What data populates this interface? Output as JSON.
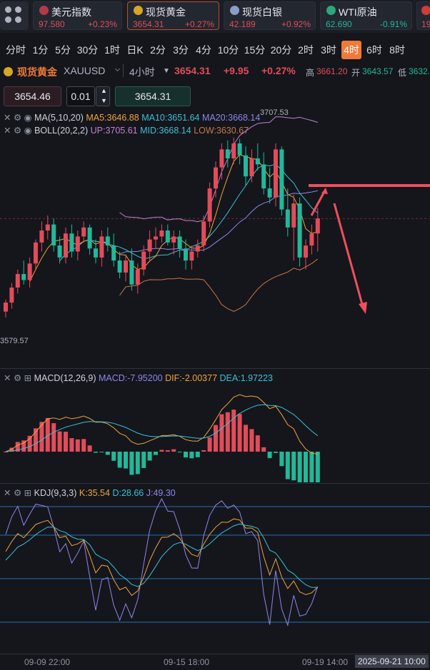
{
  "tickers": [
    {
      "name": "美元指数",
      "price": "97.580",
      "change": "+0.23%",
      "up": true,
      "flag_color": "#b23a48"
    },
    {
      "name": "现货黄金",
      "price": "3654.31",
      "change": "+0.27%",
      "up": true,
      "flag_color": "#d9a525",
      "active": true
    },
    {
      "name": "现货白银",
      "price": "42.189",
      "change": "+0.92%",
      "up": true,
      "flag_color": "#8a9cc9"
    },
    {
      "name": "WTI原油",
      "price": "62.690",
      "change": "-0.91%",
      "up": false,
      "flag_color": "#2aa77d"
    },
    {
      "name": "",
      "price": "19",
      "change": "",
      "up": true,
      "flag_color": "#d23b3b"
    }
  ],
  "intervals": [
    "分时",
    "1分",
    "5分",
    "30分",
    "1时",
    "日K",
    "2分",
    "3分",
    "4分",
    "10分",
    "15分",
    "20分",
    "2时",
    "3时",
    "4时",
    "6时",
    "8时"
  ],
  "active_interval": "4时",
  "header": {
    "name": "现货黄金",
    "symbol": "XAUUSD",
    "period": "4小时",
    "price": "3654.31",
    "change": "+9.95",
    "change_pct": "+0.27%",
    "high_label": "高",
    "high": "3661.20",
    "open_label": "开",
    "open": "3643.57",
    "low_label": "低",
    "low": "3632."
  },
  "order": {
    "bid": "3654.46",
    "qty": "0.01",
    "ask": "3654.31"
  },
  "ma_legend": {
    "title": "MA(5,10,20)",
    "ma5": "MA5:3646.88",
    "ma10": "MA10:3651.64",
    "ma20": "MA20:3668.14"
  },
  "boll_legend": {
    "title": "BOLL(20,2,2)",
    "up": "UP:3705.61",
    "mid": "MID:3668.14",
    "low": "LOW:3630.67"
  },
  "macd_legend": {
    "title": "MACD(12,26,9)",
    "macd": "MACD:-7.95200",
    "dif": "DIF:-2.00377",
    "dea": "DEA:1.97223"
  },
  "kdj_legend": {
    "title": "KDJ(9,3,3)",
    "k": "K:35.54",
    "d": "D:28.66",
    "j": "J:49.30"
  },
  "chart_labels": {
    "high_mark": "3707.53",
    "low_mark": "3579.57"
  },
  "x_axis": [
    "09-09 22:00",
    "09-15 18:00",
    "09-19 14:00",
    "2025-09-21 10:00"
  ],
  "colors": {
    "up": "#e24c5a",
    "down": "#22b89a",
    "ma5": "#f0a43a",
    "ma10": "#3bc0d6",
    "ma20": "#8f86e8",
    "boll": "#c97fd0",
    "accent": "#f07a3a"
  },
  "chart_data": {
    "type": "candlestick",
    "series": [
      {
        "name": "K线",
        "values": [
          [
            3592,
            3600,
            3588,
            3598
          ],
          [
            3598,
            3611,
            3594,
            3608
          ],
          [
            3608,
            3620,
            3604,
            3617
          ],
          [
            3617,
            3626,
            3610,
            3613
          ],
          [
            3613,
            3628,
            3608,
            3624
          ],
          [
            3624,
            3640,
            3620,
            3638
          ],
          [
            3638,
            3652,
            3632,
            3646
          ],
          [
            3646,
            3656,
            3640,
            3650
          ],
          [
            3650,
            3654,
            3632,
            3636
          ],
          [
            3636,
            3642,
            3624,
            3628
          ],
          [
            3628,
            3648,
            3624,
            3644
          ],
          [
            3644,
            3650,
            3628,
            3632
          ],
          [
            3632,
            3646,
            3626,
            3642
          ],
          [
            3642,
            3652,
            3638,
            3648
          ],
          [
            3648,
            3650,
            3630,
            3634
          ],
          [
            3634,
            3640,
            3624,
            3628
          ],
          [
            3628,
            3646,
            3622,
            3642
          ],
          [
            3642,
            3648,
            3632,
            3636
          ],
          [
            3636,
            3644,
            3622,
            3626
          ],
          [
            3626,
            3632,
            3614,
            3618
          ],
          [
            3618,
            3630,
            3612,
            3626
          ],
          [
            3626,
            3634,
            3606,
            3610
          ],
          [
            3610,
            3624,
            3604,
            3620
          ],
          [
            3620,
            3636,
            3616,
            3632
          ],
          [
            3632,
            3646,
            3626,
            3640
          ],
          [
            3640,
            3648,
            3634,
            3642
          ],
          [
            3642,
            3650,
            3638,
            3646
          ],
          [
            3646,
            3650,
            3636,
            3638
          ],
          [
            3638,
            3646,
            3630,
            3642
          ],
          [
            3642,
            3646,
            3628,
            3634
          ],
          [
            3634,
            3640,
            3620,
            3626
          ],
          [
            3626,
            3636,
            3620,
            3632
          ],
          [
            3632,
            3640,
            3628,
            3636
          ],
          [
            3636,
            3656,
            3632,
            3652
          ],
          [
            3652,
            3678,
            3648,
            3674
          ],
          [
            3674,
            3692,
            3668,
            3688
          ],
          [
            3688,
            3704,
            3680,
            3700
          ],
          [
            3700,
            3706,
            3688,
            3694
          ],
          [
            3694,
            3708,
            3690,
            3704
          ],
          [
            3704,
            3707,
            3690,
            3696
          ],
          [
            3696,
            3702,
            3676,
            3682
          ],
          [
            3682,
            3700,
            3678,
            3694
          ],
          [
            3694,
            3704,
            3686,
            3690
          ],
          [
            3690,
            3698,
            3670,
            3674
          ],
          [
            3674,
            3688,
            3664,
            3668
          ],
          [
            3668,
            3704,
            3662,
            3700
          ],
          [
            3700,
            3702,
            3656,
            3660
          ],
          [
            3660,
            3674,
            3642,
            3648
          ],
          [
            3648,
            3670,
            3626,
            3664
          ],
          [
            3664,
            3668,
            3622,
            3628
          ],
          [
            3628,
            3640,
            3620,
            3636
          ],
          [
            3636,
            3650,
            3630,
            3644
          ],
          [
            3644,
            3661,
            3632,
            3654
          ]
        ]
      }
    ],
    "ylim": [
      3560,
      3720
    ],
    "overlays": [
      "MA5",
      "MA10",
      "MA20",
      "BOLL"
    ],
    "annotations": [
      "horizontal resistance line",
      "arrow pointing down"
    ]
  }
}
